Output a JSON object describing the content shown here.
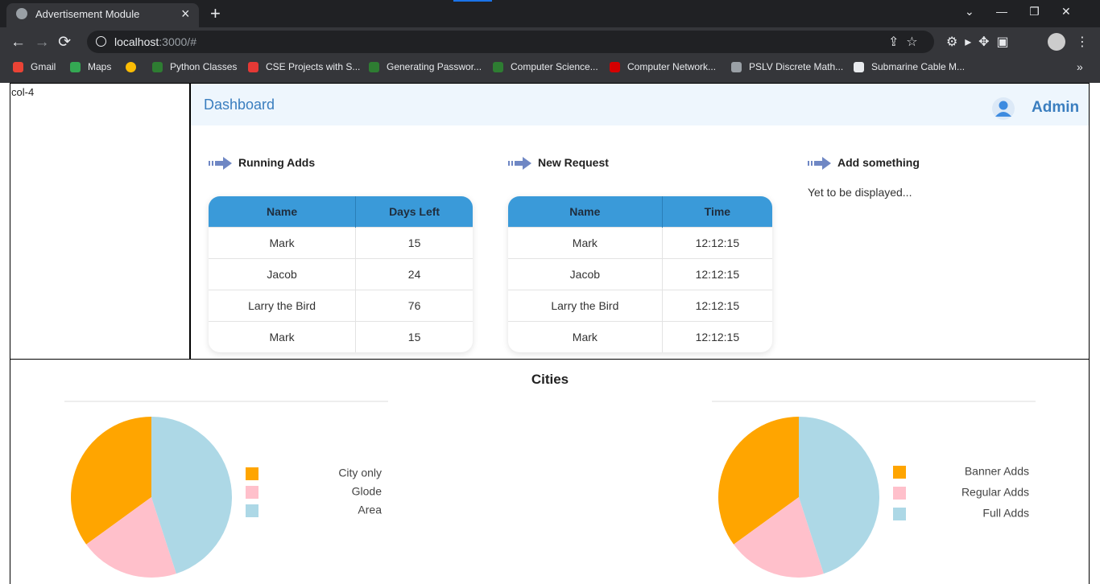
{
  "browser": {
    "tab_title": "Advertisement Module",
    "url_host": "localhost",
    "url_path": ":3000/#",
    "bookmarks": [
      "Gmail",
      "Maps",
      "Python Classes",
      "CSE Projects with S...",
      "Generating Passwor...",
      "Computer Science...",
      "Computer Network...",
      "PSLV Discrete Math...",
      "Submarine Cable M..."
    ]
  },
  "sidebar": {
    "label": "col-4"
  },
  "header": {
    "title": "Dashboard",
    "user": "Admin"
  },
  "sections": [
    {
      "title": "Running Adds",
      "table": {
        "columns": [
          "Name",
          "Days Left"
        ],
        "rows": [
          [
            "Mark",
            15
          ],
          [
            "Jacob",
            24
          ],
          [
            "Larry the Bird",
            76
          ],
          [
            "Mark",
            15
          ]
        ]
      }
    },
    {
      "title": "New Request",
      "table": {
        "columns": [
          "Name",
          "Time"
        ],
        "rows": [
          [
            "Mark",
            "12:12:15"
          ],
          [
            "Jacob",
            "12:12:15"
          ],
          [
            "Larry the Bird",
            "12:12:15"
          ],
          [
            "Mark",
            "12:12:15"
          ]
        ]
      }
    },
    {
      "title": "Add something",
      "text": "Yet to be displayed..."
    }
  ],
  "charts_title": "Cities",
  "chart_data": [
    {
      "type": "pie",
      "categories": [
        "City only",
        "Glode",
        "Area"
      ],
      "values": [
        35,
        20,
        45
      ],
      "colors": [
        "#ffa500",
        "#ffc0cb",
        "#add8e6"
      ],
      "legend": "right"
    },
    {
      "type": "pie",
      "categories": [
        "Banner Adds",
        "Regular Adds",
        "Full Adds"
      ],
      "values": [
        35,
        20,
        45
      ],
      "colors": [
        "#ffa500",
        "#ffc0cb",
        "#add8e6"
      ],
      "legend": "right"
    }
  ]
}
